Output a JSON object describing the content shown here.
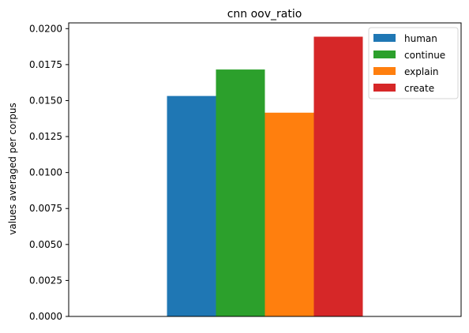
{
  "chart_data": {
    "type": "bar",
    "title": "cnn oov_ratio",
    "xlabel": "",
    "ylabel": "values averaged per corpus",
    "categories": [
      ""
    ],
    "series": [
      {
        "name": "human",
        "values": [
          0.01532
        ],
        "color": "#1f77b4"
      },
      {
        "name": "continue",
        "values": [
          0.01716
        ],
        "color": "#2ca02c"
      },
      {
        "name": "explain",
        "values": [
          0.01416
        ],
        "color": "#ff7f0e"
      },
      {
        "name": "create",
        "values": [
          0.01944
        ],
        "color": "#d62728"
      }
    ],
    "ylim": [
      0,
      0.0204
    ],
    "yticks": [
      0.0,
      0.0025,
      0.005,
      0.0075,
      0.01,
      0.0125,
      0.015,
      0.0175,
      0.02
    ],
    "ytick_labels": [
      "0.0000",
      "0.0025",
      "0.0050",
      "0.0075",
      "0.0100",
      "0.0125",
      "0.0150",
      "0.0175",
      "0.0200"
    ],
    "grid": false,
    "legend_position": "top-right"
  }
}
